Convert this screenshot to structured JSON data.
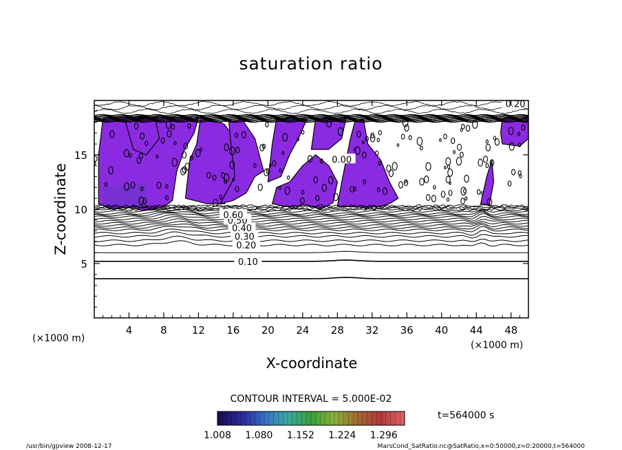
{
  "chart_data": {
    "type": "contour",
    "title": "saturation ratio",
    "xlabel": "X-coordinate",
    "ylabel": "Z-coordinate",
    "x_unit_left": "(×1000 m)",
    "x_unit_right": "(×1000 m)",
    "xlim": [
      0,
      50
    ],
    "ylim": [
      0,
      20
    ],
    "x_ticks": [
      4,
      8,
      12,
      16,
      20,
      24,
      28,
      32,
      36,
      40,
      44,
      48
    ],
    "y_ticks": [
      5,
      10,
      15
    ],
    "contour_interval_text": "CONTOUR INTERVAL = 5.000E-02",
    "time_label": "t=564000 s",
    "colorbar_ticks": [
      "1.008",
      "1.080",
      "1.152",
      "1.224",
      "1.296"
    ],
    "colorbar_range": [
      1.008,
      1.332
    ],
    "colorbar_colors": [
      "#1a0a50",
      "#2a2a9a",
      "#3a70c8",
      "#3aa8a0",
      "#3aa03a",
      "#8ab03a",
      "#a06a30",
      "#b03a3a",
      "#e06060"
    ],
    "fill_color": "#8a2be2",
    "contour_labels": [
      {
        "text": "0.10",
        "x": 17.7,
        "z": 5.2
      },
      {
        "text": "0.20",
        "x": 17.5,
        "z": 6.7
      },
      {
        "text": "0.30",
        "x": 17.3,
        "z": 7.5
      },
      {
        "text": "0.40",
        "x": 17.0,
        "z": 8.3
      },
      {
        "text": "0.50",
        "x": 16.5,
        "z": 9.0
      },
      {
        "text": "0.60",
        "x": 16.0,
        "z": 9.5
      },
      {
        "text": "0.20",
        "x": 48.5,
        "z": 19.7
      },
      {
        "text": "0.00",
        "x": 28.5,
        "z": 14.6
      }
    ],
    "footer_left": "/usr/bin/gpview   2008-12-17",
    "footer_right": "MarsCond_SatRatio.nc@SatRatio,x=0:50000,z=0:20000,t=564000"
  }
}
